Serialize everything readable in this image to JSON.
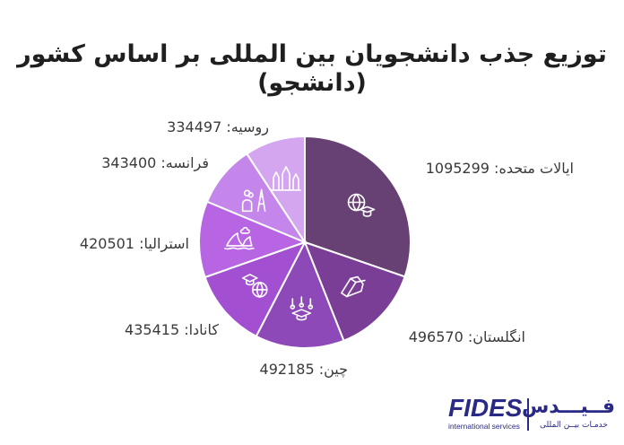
{
  "chart_data": {
    "type": "pie",
    "title": "توزیع جذب دانشجویان بین المللی بر اساس کشور",
    "subtitle": "(دانشجو)",
    "slices": [
      {
        "label": "ایالات متحده",
        "value": 1095299,
        "display": "ایالات متحده: 1095299",
        "color": "#674173",
        "icon": "globe-graduation-cap-icon"
      },
      {
        "label": "انگلستان",
        "value": 496570,
        "display": "انگلستان: 496570",
        "color": "#7b3e97",
        "icon": "open-book-icon"
      },
      {
        "label": "چین",
        "value": 492185,
        "display": "چین: 492185",
        "color": "#8e49b8",
        "icon": "graduation-cap-icon"
      },
      {
        "label": "کانادا",
        "value": 435415,
        "display": "کانادا: 435415",
        "color": "#a24fd1",
        "icon": "student-globe-icon"
      },
      {
        "label": "استرالیا",
        "value": 420501,
        "display": "استرالیا: 420501",
        "color": "#b865e4",
        "icon": "opera-house-icon"
      },
      {
        "label": "فرانسه",
        "value": 343400,
        "display": "فرانسه: 343400",
        "color": "#c486ea",
        "icon": "eiffel-tower-icon"
      },
      {
        "label": "روسیه",
        "value": 334497,
        "display": "روسیه: 334497",
        "color": "#d3a6ef",
        "icon": "kremlin-icon"
      }
    ]
  },
  "logo": {
    "en_name": "FIDES",
    "en_sub": "international services",
    "fa_name": "فــیـــدس",
    "fa_sub": "خدمـات بیــن المللی"
  }
}
